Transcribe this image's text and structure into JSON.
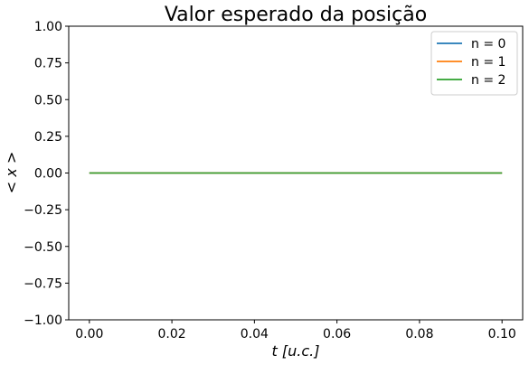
{
  "chart_data": {
    "type": "line",
    "title": "Valor esperado da posição",
    "xlabel": "t [u.c.]",
    "ylabel": "< x >",
    "xlim": [
      -0.005,
      0.105
    ],
    "ylim": [
      -1.0,
      1.0
    ],
    "xticks": [
      0.0,
      0.02,
      0.04,
      0.06,
      0.08,
      0.1
    ],
    "xtick_labels": [
      "0.00",
      "0.02",
      "0.04",
      "0.06",
      "0.08",
      "0.10"
    ],
    "yticks": [
      1.0,
      0.75,
      0.5,
      0.25,
      0.0,
      -0.25,
      -0.5,
      -0.75,
      -1.0
    ],
    "ytick_labels": [
      "1.00",
      "0.75",
      "0.50",
      "0.25",
      "0.00",
      "−0.25",
      "−0.50",
      "−0.75",
      "−1.00"
    ],
    "grid": false,
    "legend_position": "top-right",
    "series": [
      {
        "name": "n = 0",
        "color": "#1f77b4",
        "x": [
          0.0,
          0.1
        ],
        "y": [
          0.0,
          0.0
        ]
      },
      {
        "name": "n = 1",
        "color": "#ff7f0e",
        "x": [
          0.0,
          0.1
        ],
        "y": [
          0.0,
          0.0
        ]
      },
      {
        "name": "n = 2",
        "color": "#2ca02c",
        "x": [
          0.0,
          0.1
        ],
        "y": [
          0.0,
          0.0
        ]
      }
    ]
  }
}
